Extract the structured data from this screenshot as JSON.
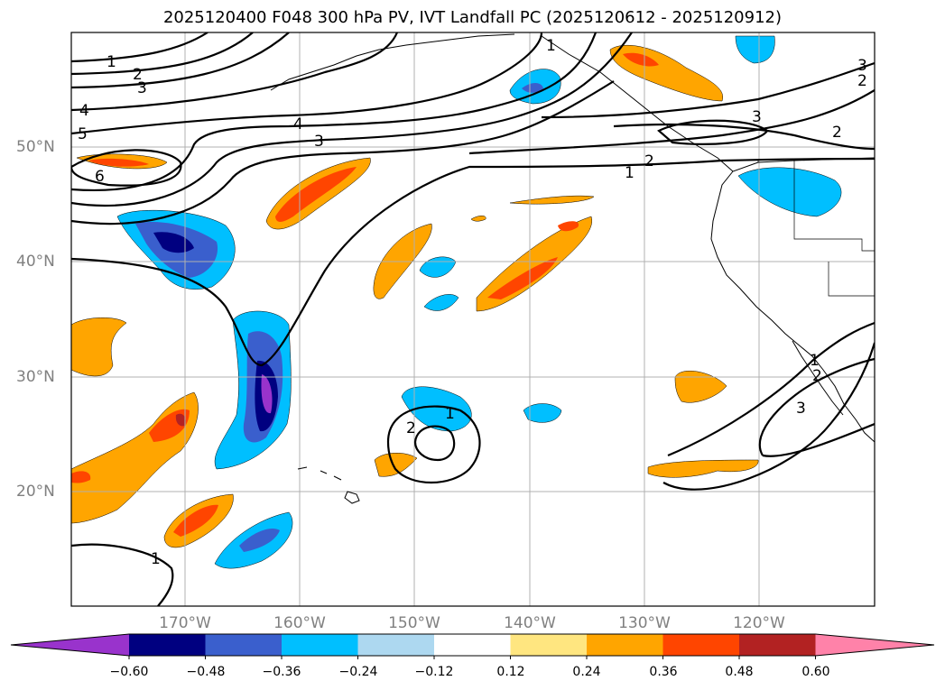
{
  "title": "2025120400 F048 300 hPa PV, IVT Landfall PC (2025120612 - 2025120912)",
  "lat_labels": [
    "50°N",
    "40°N",
    "30°N",
    "20°N"
  ],
  "lon_labels": [
    "170°W",
    "160°W",
    "150°W",
    "140°W",
    "130°W",
    "120°W"
  ],
  "contour_labels": [
    "1",
    "2",
    "3",
    "4",
    "5",
    "6",
    "1",
    "2",
    "3",
    "4",
    "3",
    "2",
    "1",
    "2",
    "3",
    "1",
    "2",
    "1",
    "2",
    "3",
    "1"
  ],
  "colorbar": {
    "ticks": [
      "−0.60",
      "−0.48",
      "−0.36",
      "−0.24",
      "−0.12",
      "0.12",
      "0.24",
      "0.36",
      "0.48",
      "0.60"
    ],
    "colors": [
      "#9933cc",
      "#000080",
      "#3a5fcd",
      "#00bfff",
      "#add8f0",
      "#ffffff",
      "#ffe680",
      "#ffa500",
      "#ff4500",
      "#b22222",
      "#ff82a9"
    ]
  },
  "colors": {
    "positive_1": "#ffa500",
    "positive_2": "#ff4500",
    "positive_3": "#b22222",
    "negative_1": "#00bfff",
    "negative_2": "#3a5fcd",
    "negative_3": "#000080",
    "negative_4": "#9933cc",
    "grid": "#b0b0b0",
    "contour": "#000000"
  }
}
